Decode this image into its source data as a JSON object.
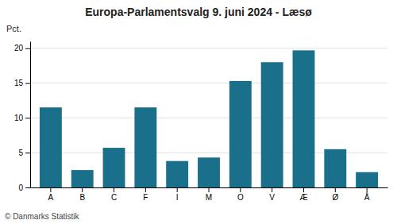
{
  "chart_data": {
    "type": "bar",
    "title": "Europa-Parlamentsvalg 9. juni 2024 - Læsø",
    "ylabel": "Pct.",
    "footer": "© Danmarks Statistik",
    "categories": [
      "A",
      "B",
      "C",
      "F",
      "I",
      "M",
      "O",
      "V",
      "Æ",
      "Ø",
      "Å"
    ],
    "values": [
      11.5,
      2.5,
      5.7,
      11.5,
      3.8,
      4.3,
      15.3,
      18.0,
      19.7,
      5.5,
      2.2
    ],
    "color": "#1a6f8a",
    "ylim": [
      0,
      21
    ],
    "yticks": [
      0,
      5,
      10,
      15,
      20
    ],
    "grid": true
  }
}
